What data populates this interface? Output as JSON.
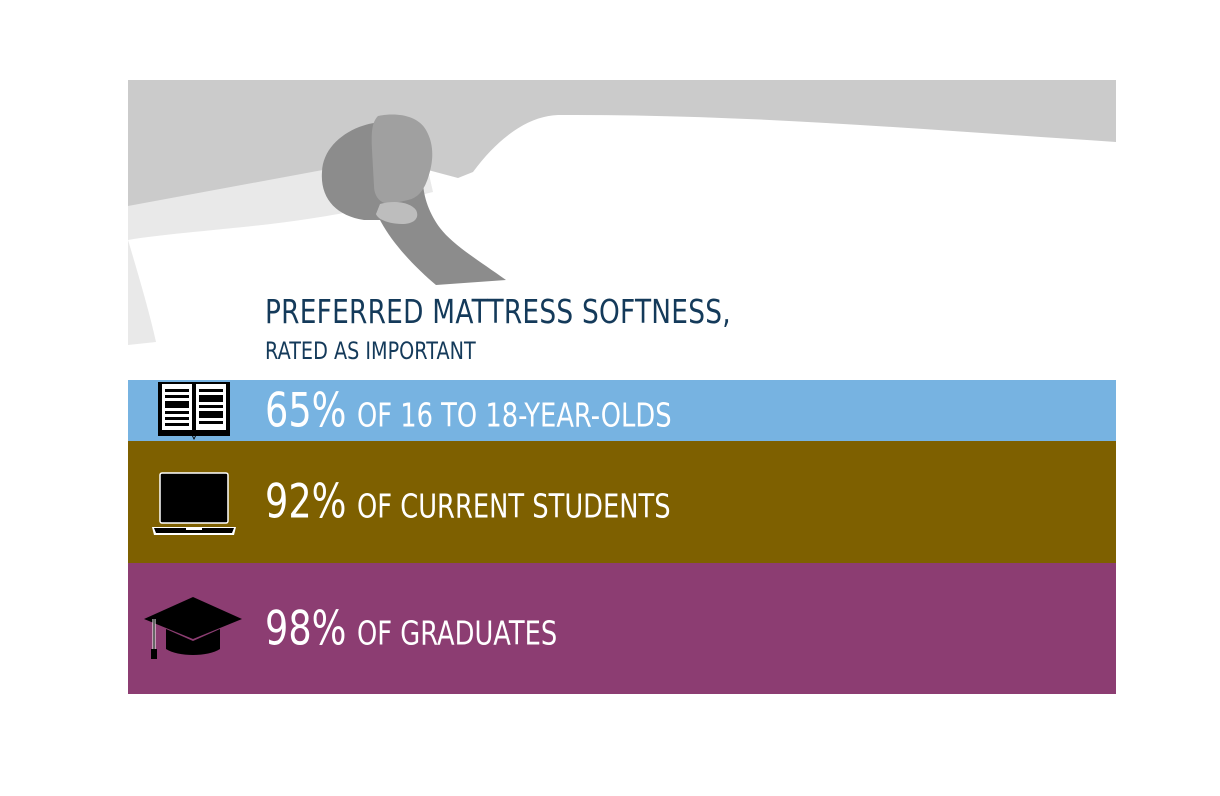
{
  "colors": {
    "title": "#143a5a",
    "band_1": "#77b3e1",
    "band_2": "#7e6000",
    "band_3": "#8c3d72",
    "illustration_gray": "#cbcbcb",
    "pillow_gray": "#e9e9e9",
    "head_gray": "#8c8c8c"
  },
  "header": {
    "title": "PREFERRED MATTRESS SOFTNESS,",
    "subtitle": "RATED AS IMPORTANT"
  },
  "rows": [
    {
      "icon": "book-icon",
      "percent": "65%",
      "label": "OF 16 TO 18-YEAR-OLDS",
      "value": 65
    },
    {
      "icon": "laptop-icon",
      "percent": "92%",
      "label": "OF CURRENT STUDENTS",
      "value": 92
    },
    {
      "icon": "graduation-cap-icon",
      "percent": "98%",
      "label": "OF GRADUATES",
      "value": 98
    }
  ]
}
